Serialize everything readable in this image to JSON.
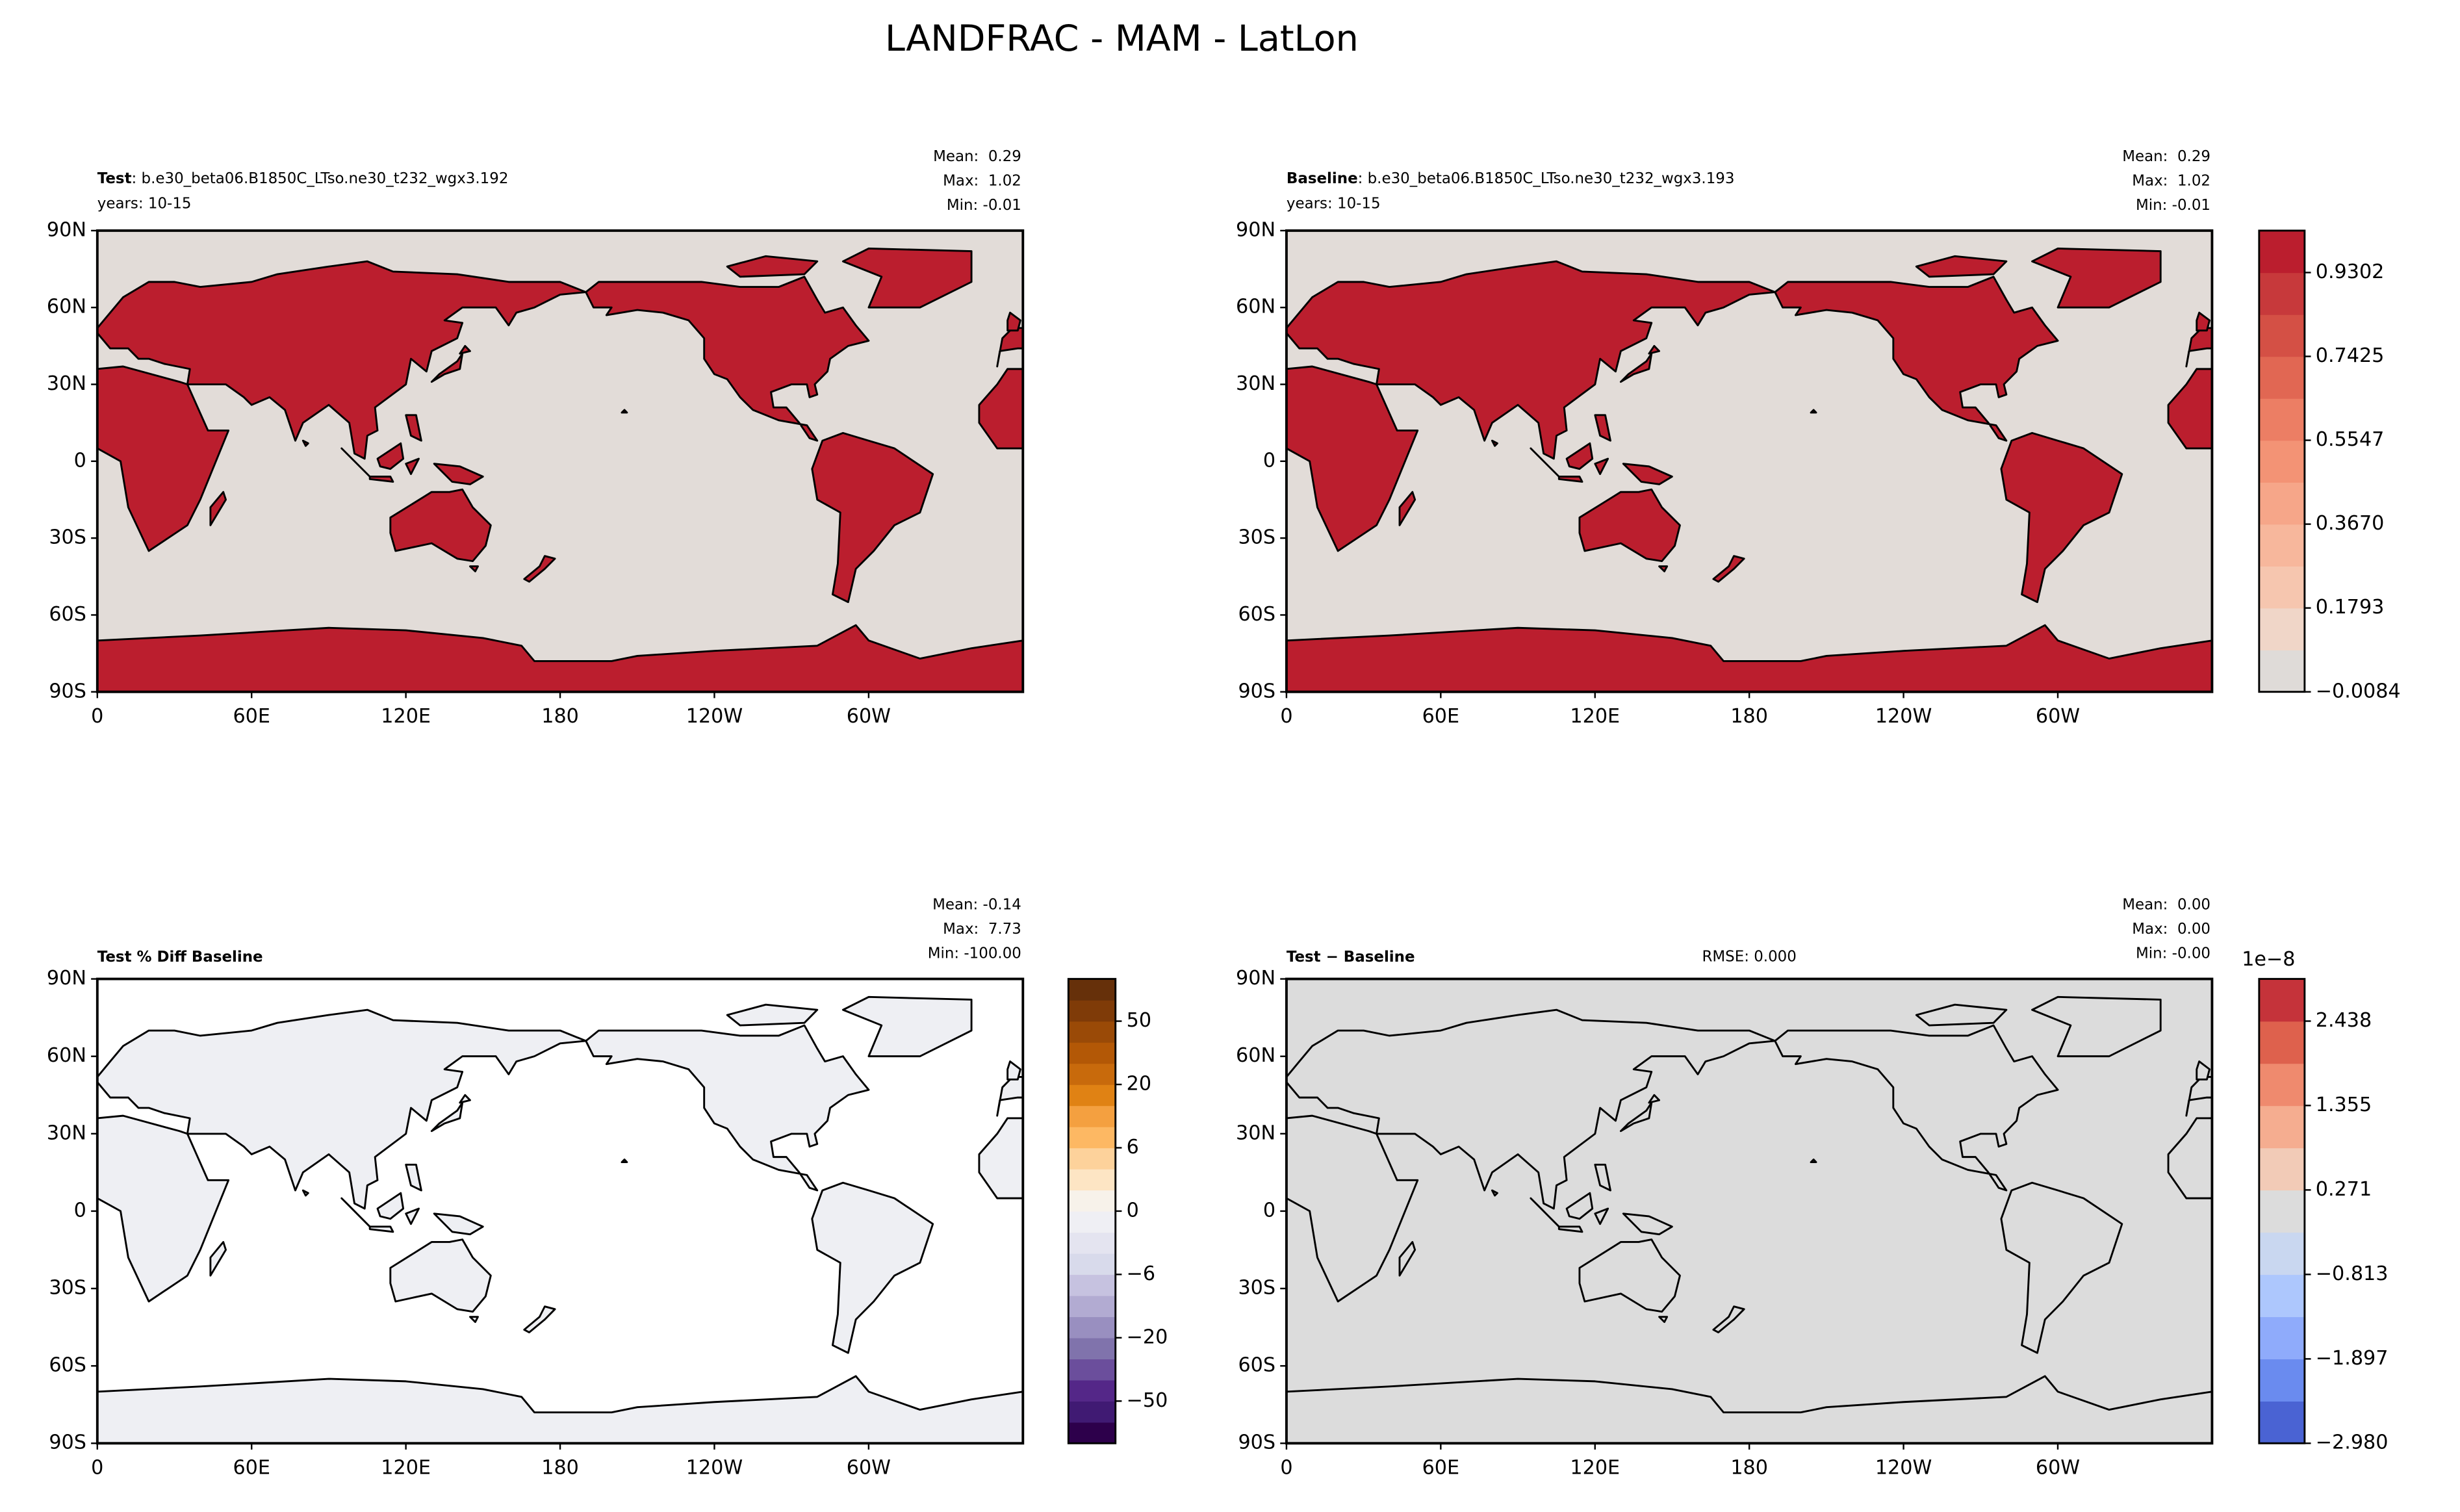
{
  "title": "LANDFRAC - MAM - LatLon",
  "chart_data": [
    {
      "type": "map",
      "title": "Test",
      "title_detail": ": b.e30_beta06.B1850C_LTso.ne30_t232_wgx3.192",
      "subtitle": "years: 10-15",
      "stats": [
        "Mean:  0.29",
        "Max:  1.02",
        "Min: -0.01"
      ],
      "ocean_color": "#e2dcd8",
      "land_color": "#bb1e2e",
      "xlim": [
        0,
        360
      ],
      "xticks": [
        0,
        {
          "value": 60,
          "label": "60E"
        },
        {
          "value": 120,
          "label": "120E"
        },
        180,
        {
          "value": 240,
          "label": "120W"
        },
        {
          "value": 300,
          "label": "60W"
        }
      ],
      "ylim": [
        -90,
        90
      ],
      "yticks": [
        {
          "value": 90,
          "label": "90N"
        },
        {
          "value": 60,
          "label": "60N"
        },
        {
          "value": 30,
          "label": "30N"
        },
        0,
        {
          "value": -30,
          "label": "30S"
        },
        {
          "value": -60,
          "label": "60S"
        },
        {
          "value": -90,
          "label": "90S"
        }
      ]
    },
    {
      "type": "map",
      "title": "Baseline",
      "title_detail": ": b.e30_beta06.B1850C_LTso.ne30_t232_wgx3.193",
      "subtitle": "years: 10-15",
      "stats": [
        "Mean:  0.29",
        "Max:  1.02",
        "Min: -0.01"
      ],
      "ocean_color": "#e2dcd8",
      "land_color": "#bb1e2e",
      "xlim": [
        0,
        360
      ],
      "xticks": [
        0,
        {
          "value": 60,
          "label": "60E"
        },
        {
          "value": 120,
          "label": "120E"
        },
        180,
        {
          "value": 240,
          "label": "120W"
        },
        {
          "value": 300,
          "label": "60W"
        }
      ],
      "ylim": [
        -90,
        90
      ],
      "yticks": [
        {
          "value": 90,
          "label": "90N"
        },
        {
          "value": 60,
          "label": "60N"
        },
        {
          "value": 30,
          "label": "30N"
        },
        0,
        {
          "value": -30,
          "label": "30S"
        },
        {
          "value": -60,
          "label": "60S"
        },
        {
          "value": -90,
          "label": "90S"
        }
      ],
      "colorbar": {
        "levels": [
          -0.0084,
          0.0855,
          0.1793,
          0.2732,
          0.367,
          0.4609,
          0.5547,
          0.6486,
          0.7425,
          0.8363,
          0.9302,
          1.024
        ],
        "colors": [
          "#dfdbd8",
          "#f0d6c8",
          "#f6c6af",
          "#f7b79c",
          "#f6a689",
          "#f39375",
          "#ec7e64",
          "#e16753",
          "#d45045",
          "#c7393b",
          "#bb1e2e"
        ],
        "ticks": [
          {
            "value": -0.0084,
            "label": "−0.0084"
          },
          0.1793,
          {
            "value": 0.367,
            "label": "0.3670"
          },
          0.5547,
          0.7425,
          0.9302
        ]
      }
    },
    {
      "type": "map",
      "title": "Test % Diff Baseline",
      "stats": [
        "Mean: -0.14",
        "Max:  7.73",
        "Min: -100.00"
      ],
      "ocean_color": "#ffffff",
      "land_color": "#eeeff3",
      "xlim": [
        0,
        360
      ],
      "xticks": [
        0,
        {
          "value": 60,
          "label": "60E"
        },
        {
          "value": 120,
          "label": "120E"
        },
        180,
        {
          "value": 240,
          "label": "120W"
        },
        {
          "value": 300,
          "label": "60W"
        }
      ],
      "ylim": [
        -90,
        90
      ],
      "yticks": [
        {
          "value": 90,
          "label": "90N"
        },
        {
          "value": 60,
          "label": "60N"
        },
        {
          "value": 30,
          "label": "30N"
        },
        0,
        {
          "value": -30,
          "label": "30S"
        },
        {
          "value": -60,
          "label": "60S"
        },
        {
          "value": -90,
          "label": "90S"
        }
      ],
      "colorbar": {
        "levels": [
          -100,
          -75,
          -50,
          -40,
          -30,
          -20,
          -15,
          -10,
          -6,
          -4,
          -2,
          0,
          2,
          4,
          6,
          10,
          15,
          20,
          30,
          40,
          50,
          75,
          100
        ],
        "colors": [
          "#2d004b",
          "#401a73",
          "#542788",
          "#6b4e9c",
          "#8073ac",
          "#998fc0",
          "#b2abd2",
          "#c6c2e0",
          "#d8daeb",
          "#e4e4f0",
          "#efeff4",
          "#f7f2ea",
          "#fde5c4",
          "#fdd29b",
          "#fdb863",
          "#f4a040",
          "#e08214",
          "#c86a0c",
          "#b35806",
          "#9a4a07",
          "#7f3b08",
          "#66300a"
        ],
        "ticks": [
          {
            "value": -50,
            "label": "−50"
          },
          {
            "value": -20,
            "label": "−20"
          },
          {
            "value": -6,
            "label": "−6"
          },
          0,
          6,
          20,
          50
        ]
      }
    },
    {
      "type": "map",
      "title": "Test − Baseline",
      "center_text": "RMSE: 0.000",
      "stats": [
        "Mean:  0.00",
        "Max:  0.00",
        "Min: -0.00"
      ],
      "ocean_color": "#dcdcdc",
      "land_color": "#dcdcdc",
      "xlim": [
        0,
        360
      ],
      "xticks": [
        0,
        {
          "value": 60,
          "label": "60E"
        },
        {
          "value": 120,
          "label": "120E"
        },
        180,
        {
          "value": 240,
          "label": "120W"
        },
        {
          "value": 300,
          "label": "60W"
        }
      ],
      "ylim": [
        -90,
        90
      ],
      "yticks": [
        {
          "value": 90,
          "label": "90N"
        },
        {
          "value": 60,
          "label": "60N"
        },
        {
          "value": 30,
          "label": "30N"
        },
        0,
        {
          "value": -30,
          "label": "30S"
        },
        {
          "value": -60,
          "label": "60S"
        },
        {
          "value": -90,
          "label": "90S"
        }
      ],
      "colorbar": {
        "offset_label": "1e−8",
        "levels": [
          -2.98,
          -2.4383,
          -1.8965,
          -1.3548,
          -0.813,
          -0.2713,
          0.2705,
          0.8123,
          1.354,
          1.8958,
          2.4375,
          2.9793
        ],
        "colors": [
          "#4a63d3",
          "#6a8bef",
          "#8fabfb",
          "#adc7fd",
          "#c9d7f0",
          "#dcdcdc",
          "#f2cbb7",
          "#f5ad90",
          "#ef8a6e",
          "#de614d",
          "#c5333a"
        ],
        "ticks": [
          {
            "value": -2.98,
            "label": "−2.980"
          },
          {
            "value": -1.897,
            "label": "−1.897"
          },
          {
            "value": -0.813,
            "label": "−0.813"
          },
          0.271,
          1.355,
          2.438
        ]
      }
    }
  ]
}
